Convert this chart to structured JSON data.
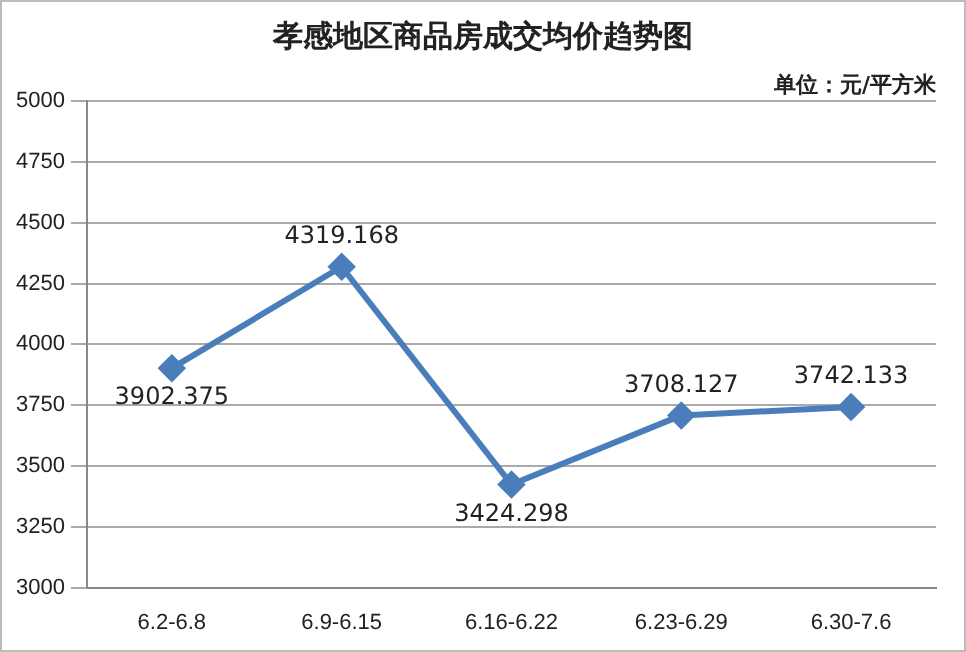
{
  "chart_data": {
    "type": "line",
    "title": "孝感地区商品房成交均价趋势图",
    "annotations": [
      "单位：元/平方米"
    ],
    "categories": [
      "6.2-6.8",
      "6.9-6.15",
      "6.16-6.22",
      "6.23-6.29",
      "6.30-7.6"
    ],
    "series": [
      {
        "color": "#4a7ebb",
        "values": [
          3902.375,
          4319.168,
          3424.298,
          3708.127,
          3742.133
        ]
      }
    ],
    "ylim": [
      3000,
      5000
    ],
    "yticks": [
      3000,
      3250,
      3500,
      3750,
      4000,
      4250,
      4500,
      4750,
      5000
    ],
    "grid": "y",
    "legend": false,
    "marker": "diamond",
    "line_style": "solid",
    "data_labels": true
  }
}
